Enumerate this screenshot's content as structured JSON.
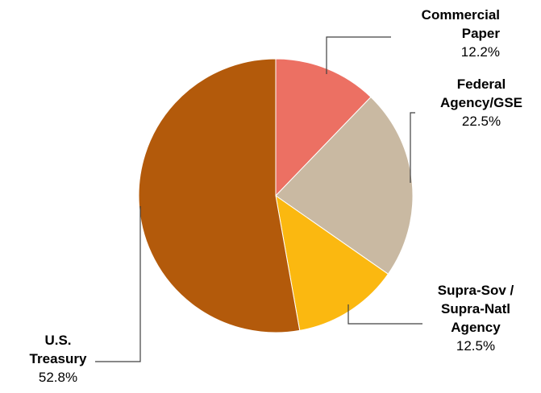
{
  "chart_data": {
    "type": "pie",
    "title": "",
    "slices": [
      {
        "label_lines": [
          "Commercial",
          "Paper"
        ],
        "value": 12.2,
        "value_text": "12.2%",
        "color": "#ec7063"
      },
      {
        "label_lines": [
          "Federal",
          "Agency/GSE"
        ],
        "value": 22.5,
        "value_text": "22.5%",
        "color": "#c9b9a2"
      },
      {
        "label_lines": [
          "Supra-Sov /",
          "Supra-Natl",
          "Agency"
        ],
        "value": 12.5,
        "value_text": "12.5%",
        "color": "#fbb810"
      },
      {
        "label_lines": [
          "U.S.",
          "Treasury"
        ],
        "value": 52.8,
        "value_text": "52.8%",
        "color": "#b35a0b"
      }
    ],
    "start_angle": "12 o'clock",
    "direction": "clockwise",
    "legend": "none"
  }
}
